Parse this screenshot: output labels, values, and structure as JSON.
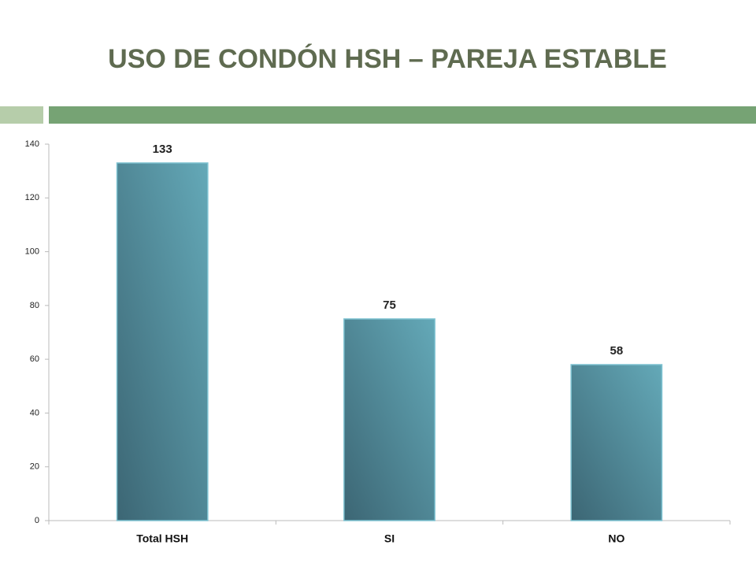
{
  "chart_data": {
    "type": "bar",
    "title": "USO DE CONDÓN HSH – PAREJA ESTABLE",
    "categories": [
      "Total HSH",
      "SI",
      "NO"
    ],
    "values": [
      133,
      75,
      58
    ],
    "color": "#4f8d9c",
    "ylim": [
      0,
      140
    ],
    "yticks": [
      0,
      20,
      40,
      60,
      80,
      100,
      120,
      140
    ],
    "grid": false
  }
}
